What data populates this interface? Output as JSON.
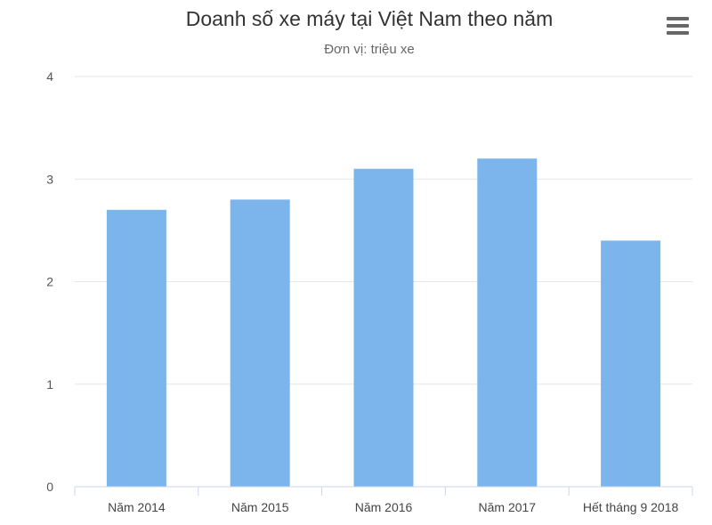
{
  "chart_data": {
    "type": "bar",
    "title": "Doanh số xe máy tại Việt Nam theo năm",
    "subtitle": "Đơn vị: triệu xe",
    "categories": [
      "Năm 2014",
      "Năm 2015",
      "Năm 2016",
      "Năm 2017",
      "Hết tháng 9 2018"
    ],
    "values": [
      2.7,
      2.8,
      3.1,
      3.2,
      2.4
    ],
    "ylim": [
      0,
      4
    ],
    "yticks": [
      "0",
      "1",
      "2",
      "3",
      "4"
    ],
    "xlabel": "",
    "ylabel": "",
    "grid": true,
    "legend": "none",
    "bar_color": "#7cb5ec"
  },
  "menu": {
    "icon": "hamburger-menu-icon"
  }
}
